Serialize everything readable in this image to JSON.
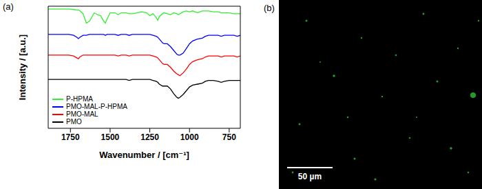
{
  "chart_data": {
    "type": "line",
    "title": "(a)",
    "x_label": "Wavenumber / [cm⁻¹]",
    "y_label": "Intensity / [a.u.]",
    "x": [
      1890,
      1850,
      1800,
      1760,
      1730,
      1710,
      1700,
      1690,
      1670,
      1650,
      1630,
      1600,
      1580,
      1560,
      1540,
      1530,
      1520,
      1500,
      1470,
      1450,
      1430,
      1400,
      1380,
      1360,
      1330,
      1300,
      1270,
      1250,
      1230,
      1210,
      1200,
      1190,
      1170,
      1160,
      1140,
      1120,
      1100,
      1080,
      1070,
      1060,
      1040,
      1020,
      1000,
      980,
      950,
      920,
      900,
      880,
      850,
      820,
      800,
      780,
      750,
      720,
      700,
      680
    ],
    "xlim": [
      1890,
      680
    ],
    "xticks": [
      1750,
      1500,
      1250,
      1000,
      750
    ],
    "ylim": [
      -0.3,
      1.0
    ],
    "yticks": [],
    "tick_labels": "x",
    "grid": false,
    "legend": "lower left",
    "series": [
      {
        "name": "P-HPMA",
        "color": "#33ee33",
        "values": [
          0.97,
          0.97,
          0.97,
          0.97,
          0.965,
          0.96,
          0.96,
          0.95,
          0.92,
          0.82,
          0.84,
          0.93,
          0.91,
          0.9,
          0.84,
          0.82,
          0.86,
          0.93,
          0.93,
          0.91,
          0.93,
          0.93,
          0.92,
          0.92,
          0.93,
          0.94,
          0.93,
          0.9,
          0.92,
          0.88,
          0.85,
          0.89,
          0.92,
          0.93,
          0.92,
          0.91,
          0.93,
          0.92,
          0.91,
          0.92,
          0.94,
          0.95,
          0.94,
          0.95,
          0.93,
          0.95,
          0.95,
          0.95,
          0.94,
          0.94,
          0.93,
          0.93,
          0.93,
          0.92,
          0.92,
          0.92
        ]
      },
      {
        "name": "PMO-MAL-P-HPMA",
        "color": "#0000ff",
        "values": [
          0.7,
          0.7,
          0.7,
          0.7,
          0.69,
          0.67,
          0.655,
          0.67,
          0.69,
          0.69,
          0.7,
          0.7,
          0.7,
          0.7,
          0.7,
          0.69,
          0.7,
          0.7,
          0.7,
          0.69,
          0.7,
          0.7,
          0.69,
          0.7,
          0.7,
          0.7,
          0.7,
          0.7,
          0.69,
          0.68,
          0.67,
          0.65,
          0.61,
          0.6,
          0.6,
          0.57,
          0.53,
          0.49,
          0.48,
          0.48,
          0.5,
          0.55,
          0.6,
          0.63,
          0.65,
          0.66,
          0.68,
          0.69,
          0.69,
          0.69,
          0.68,
          0.69,
          0.69,
          0.69,
          0.68,
          0.69
        ]
      },
      {
        "name": "PMO-MAL",
        "color": "#ff0000",
        "values": [
          0.48,
          0.48,
          0.48,
          0.48,
          0.47,
          0.45,
          0.44,
          0.46,
          0.48,
          0.48,
          0.48,
          0.48,
          0.48,
          0.48,
          0.48,
          0.48,
          0.48,
          0.48,
          0.48,
          0.47,
          0.48,
          0.48,
          0.47,
          0.48,
          0.48,
          0.48,
          0.48,
          0.48,
          0.47,
          0.46,
          0.45,
          0.43,
          0.39,
          0.38,
          0.38,
          0.35,
          0.31,
          0.28,
          0.27,
          0.26,
          0.29,
          0.33,
          0.38,
          0.41,
          0.43,
          0.44,
          0.46,
          0.47,
          0.47,
          0.47,
          0.46,
          0.47,
          0.47,
          0.47,
          0.46,
          0.47
        ]
      },
      {
        "name": "PMO",
        "color": "#000000",
        "values": [
          0.22,
          0.22,
          0.22,
          0.22,
          0.22,
          0.22,
          0.22,
          0.22,
          0.22,
          0.22,
          0.22,
          0.22,
          0.22,
          0.22,
          0.22,
          0.22,
          0.22,
          0.22,
          0.22,
          0.22,
          0.22,
          0.22,
          0.21,
          0.22,
          0.22,
          0.22,
          0.22,
          0.22,
          0.21,
          0.2,
          0.19,
          0.17,
          0.15,
          0.15,
          0.15,
          0.12,
          0.07,
          0.03,
          0.02,
          0.03,
          0.06,
          0.1,
          0.14,
          0.16,
          0.17,
          0.18,
          0.2,
          0.21,
          0.21,
          0.2,
          0.19,
          0.2,
          0.21,
          0.21,
          0.21,
          0.21
        ]
      }
    ]
  },
  "image": {
    "label": "(b)",
    "scale_bar": "50 µm"
  }
}
